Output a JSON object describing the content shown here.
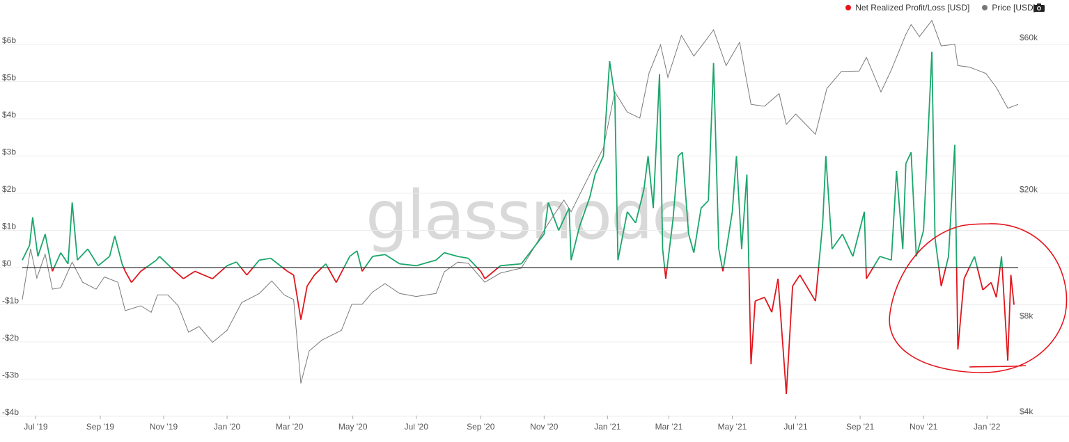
{
  "legend": {
    "series1": {
      "label": "Net Realized Profit/Loss [USD]",
      "color": "#e8141c"
    },
    "series2": {
      "label": "Price [USD]",
      "color": "#777777"
    }
  },
  "toolbar": {
    "camera_icon": "camera-icon"
  },
  "watermark": "glassnode",
  "colors": {
    "positive": "#1aa66b",
    "negative": "#e0161c",
    "price": "#7a7a7a",
    "zero_line": "#333333",
    "annotation": "#e5141c"
  },
  "chart_data": {
    "type": "line",
    "x_axis": {
      "tick_labels": [
        "Jul '19",
        "Sep '19",
        "Nov '19",
        "Jan '20",
        "Mar '20",
        "May '20",
        "Jul '20",
        "Sep '20",
        "Nov '20",
        "Jan '21",
        "Mar '21",
        "May '21",
        "Jul '21",
        "Sep '21",
        "Nov '21",
        "Jan '22"
      ],
      "range": [
        "2019-06-18",
        "2022-01-31"
      ]
    },
    "y_left": {
      "tick_labels": [
        "$6b",
        "$5b",
        "$4b",
        "$3b",
        "$2b",
        "$1b",
        "$0",
        "-$1b",
        "-$2b",
        "-$3b",
        "-$4b"
      ],
      "tick_values": [
        6,
        5,
        4,
        3,
        2,
        1,
        0,
        -1,
        -2,
        -3,
        -4
      ],
      "range": [
        -4,
        6.3
      ],
      "unit": "billion USD"
    },
    "y_right": {
      "tick_labels": [
        "$60k",
        "$20k",
        "$8k",
        "$4k"
      ],
      "tick_values": [
        60000,
        20000,
        8000,
        4000
      ],
      "scale": "log",
      "range": [
        4000,
        72000
      ]
    },
    "series": [
      {
        "name": "Net Realized Profit/Loss [USD]",
        "axis": "left",
        "points": [
          [
            "2019-06-18",
            0.2
          ],
          [
            "2019-06-25",
            0.6
          ],
          [
            "2019-06-28",
            1.35
          ],
          [
            "2019-07-03",
            0.3
          ],
          [
            "2019-07-10",
            0.9
          ],
          [
            "2019-07-17",
            -0.1
          ],
          [
            "2019-07-25",
            0.4
          ],
          [
            "2019-08-01",
            0.1
          ],
          [
            "2019-08-05",
            1.75
          ],
          [
            "2019-08-10",
            0.2
          ],
          [
            "2019-08-20",
            0.5
          ],
          [
            "2019-08-30",
            0.05
          ],
          [
            "2019-09-10",
            0.3
          ],
          [
            "2019-09-15",
            0.85
          ],
          [
            "2019-09-22",
            0.1
          ],
          [
            "2019-09-25",
            -0.1
          ],
          [
            "2019-10-01",
            -0.4
          ],
          [
            "2019-10-10",
            -0.1
          ],
          [
            "2019-10-25",
            0.2
          ],
          [
            "2019-10-28",
            0.3
          ],
          [
            "2019-11-10",
            -0.05
          ],
          [
            "2019-11-20",
            -0.3
          ],
          [
            "2019-12-01",
            -0.1
          ],
          [
            "2019-12-18",
            -0.3
          ],
          [
            "2020-01-01",
            0.05
          ],
          [
            "2020-01-10",
            0.15
          ],
          [
            "2020-01-20",
            -0.2
          ],
          [
            "2020-02-01",
            0.2
          ],
          [
            "2020-02-12",
            0.25
          ],
          [
            "2020-02-28",
            -0.1
          ],
          [
            "2020-03-05",
            -0.2
          ],
          [
            "2020-03-12",
            -1.4
          ],
          [
            "2020-03-18",
            -0.5
          ],
          [
            "2020-03-25",
            -0.2
          ],
          [
            "2020-04-05",
            0.1
          ],
          [
            "2020-04-15",
            -0.4
          ],
          [
            "2020-04-28",
            0.3
          ],
          [
            "2020-05-05",
            0.45
          ],
          [
            "2020-05-10",
            -0.1
          ],
          [
            "2020-05-20",
            0.3
          ],
          [
            "2020-06-01",
            0.35
          ],
          [
            "2020-06-15",
            0.1
          ],
          [
            "2020-07-01",
            0.05
          ],
          [
            "2020-07-20",
            0.2
          ],
          [
            "2020-07-28",
            0.4
          ],
          [
            "2020-08-10",
            0.3
          ],
          [
            "2020-08-20",
            0.25
          ],
          [
            "2020-09-01",
            -0.1
          ],
          [
            "2020-09-05",
            -0.3
          ],
          [
            "2020-09-20",
            0.05
          ],
          [
            "2020-10-10",
            0.1
          ],
          [
            "2020-10-21",
            0.5
          ],
          [
            "2020-11-01",
            0.9
          ],
          [
            "2020-11-05",
            1.75
          ],
          [
            "2020-11-15",
            1.0
          ],
          [
            "2020-11-25",
            1.6
          ],
          [
            "2020-11-27",
            0.2
          ],
          [
            "2020-12-05",
            1.1
          ],
          [
            "2020-12-15",
            1.9
          ],
          [
            "2020-12-20",
            2.5
          ],
          [
            "2020-12-28",
            3.0
          ],
          [
            "2021-01-03",
            5.55
          ],
          [
            "2021-01-08",
            4.6
          ],
          [
            "2021-01-11",
            0.2
          ],
          [
            "2021-01-20",
            1.5
          ],
          [
            "2021-01-28",
            1.2
          ],
          [
            "2021-02-05",
            2.1
          ],
          [
            "2021-02-09",
            3.0
          ],
          [
            "2021-02-14",
            1.6
          ],
          [
            "2021-02-20",
            5.2
          ],
          [
            "2021-02-23",
            0.5
          ],
          [
            "2021-02-26",
            -0.3
          ],
          [
            "2021-03-05",
            1.3
          ],
          [
            "2021-03-10",
            3.0
          ],
          [
            "2021-03-14",
            3.1
          ],
          [
            "2021-03-20",
            0.9
          ],
          [
            "2021-03-25",
            0.4
          ],
          [
            "2021-04-01",
            1.6
          ],
          [
            "2021-04-08",
            1.8
          ],
          [
            "2021-04-13",
            5.5
          ],
          [
            "2021-04-18",
            0.5
          ],
          [
            "2021-04-22",
            -0.1
          ],
          [
            "2021-05-01",
            1.5
          ],
          [
            "2021-05-05",
            3.0
          ],
          [
            "2021-05-10",
            0.5
          ],
          [
            "2021-05-15",
            2.5
          ],
          [
            "2021-05-19",
            -2.6
          ],
          [
            "2021-05-23",
            -0.9
          ],
          [
            "2021-06-01",
            -0.8
          ],
          [
            "2021-06-08",
            -1.2
          ],
          [
            "2021-06-14",
            -0.3
          ],
          [
            "2021-06-22",
            -3.4
          ],
          [
            "2021-06-28",
            -0.5
          ],
          [
            "2021-07-05",
            -0.2
          ],
          [
            "2021-07-20",
            -0.9
          ],
          [
            "2021-07-27",
            1.2
          ],
          [
            "2021-07-30",
            3.0
          ],
          [
            "2021-08-05",
            0.5
          ],
          [
            "2021-08-15",
            0.9
          ],
          [
            "2021-08-25",
            0.3
          ],
          [
            "2021-09-05",
            1.5
          ],
          [
            "2021-09-07",
            -0.3
          ],
          [
            "2021-09-20",
            0.3
          ],
          [
            "2021-10-01",
            0.2
          ],
          [
            "2021-10-06",
            2.6
          ],
          [
            "2021-10-12",
            0.5
          ],
          [
            "2021-10-15",
            2.8
          ],
          [
            "2021-10-20",
            3.1
          ],
          [
            "2021-10-25",
            0.3
          ],
          [
            "2021-11-01",
            1.0
          ],
          [
            "2021-11-09",
            5.8
          ],
          [
            "2021-11-12",
            0.8
          ],
          [
            "2021-11-18",
            -0.5
          ],
          [
            "2021-11-25",
            0.3
          ],
          [
            "2021-12-01",
            3.3
          ],
          [
            "2021-12-04",
            -2.2
          ],
          [
            "2021-12-10",
            -0.3
          ],
          [
            "2021-12-20",
            0.3
          ],
          [
            "2021-12-28",
            -0.6
          ],
          [
            "2022-01-05",
            -0.4
          ],
          [
            "2022-01-10",
            -0.8
          ],
          [
            "2022-01-15",
            0.3
          ],
          [
            "2022-01-21",
            -2.5
          ],
          [
            "2022-01-24",
            -0.2
          ],
          [
            "2022-01-27",
            -1.0
          ]
        ]
      },
      {
        "name": "Price [USD]",
        "axis": "right",
        "points": [
          [
            "2019-06-18",
            9000
          ],
          [
            "2019-06-26",
            13000
          ],
          [
            "2019-07-02",
            10500
          ],
          [
            "2019-07-10",
            12500
          ],
          [
            "2019-07-17",
            9700
          ],
          [
            "2019-07-25",
            9800
          ],
          [
            "2019-08-05",
            11800
          ],
          [
            "2019-08-15",
            10200
          ],
          [
            "2019-08-28",
            9700
          ],
          [
            "2019-09-05",
            10600
          ],
          [
            "2019-09-18",
            10200
          ],
          [
            "2019-09-25",
            8300
          ],
          [
            "2019-10-10",
            8600
          ],
          [
            "2019-10-20",
            8200
          ],
          [
            "2019-10-26",
            9300
          ],
          [
            "2019-11-05",
            9300
          ],
          [
            "2019-11-15",
            8600
          ],
          [
            "2019-11-25",
            7100
          ],
          [
            "2019-12-05",
            7400
          ],
          [
            "2019-12-18",
            6600
          ],
          [
            "2020-01-01",
            7200
          ],
          [
            "2020-01-15",
            8800
          ],
          [
            "2020-02-01",
            9400
          ],
          [
            "2020-02-13",
            10300
          ],
          [
            "2020-02-25",
            9300
          ],
          [
            "2020-03-05",
            9000
          ],
          [
            "2020-03-12",
            4900
          ],
          [
            "2020-03-20",
            6200
          ],
          [
            "2020-04-01",
            6700
          ],
          [
            "2020-04-20",
            7200
          ],
          [
            "2020-04-30",
            8700
          ],
          [
            "2020-05-10",
            8700
          ],
          [
            "2020-05-20",
            9500
          ],
          [
            "2020-06-01",
            10100
          ],
          [
            "2020-06-15",
            9400
          ],
          [
            "2020-07-01",
            9200
          ],
          [
            "2020-07-20",
            9400
          ],
          [
            "2020-07-28",
            11000
          ],
          [
            "2020-08-10",
            11800
          ],
          [
            "2020-08-20",
            11700
          ],
          [
            "2020-09-05",
            10200
          ],
          [
            "2020-09-20",
            10900
          ],
          [
            "2020-10-10",
            11300
          ],
          [
            "2020-10-21",
            12900
          ],
          [
            "2020-11-05",
            15600
          ],
          [
            "2020-11-20",
            18500
          ],
          [
            "2020-11-27",
            17000
          ],
          [
            "2020-12-05",
            19200
          ],
          [
            "2020-12-17",
            23000
          ],
          [
            "2020-12-28",
            27000
          ],
          [
            "2021-01-08",
            40500
          ],
          [
            "2021-01-20",
            35000
          ],
          [
            "2021-02-01",
            33500
          ],
          [
            "2021-02-10",
            46500
          ],
          [
            "2021-02-21",
            57000
          ],
          [
            "2021-02-28",
            45000
          ],
          [
            "2021-03-13",
            61000
          ],
          [
            "2021-03-25",
            52500
          ],
          [
            "2021-04-05",
            58500
          ],
          [
            "2021-04-13",
            63500
          ],
          [
            "2021-04-25",
            49000
          ],
          [
            "2021-05-08",
            58000
          ],
          [
            "2021-05-19",
            37000
          ],
          [
            "2021-06-01",
            36500
          ],
          [
            "2021-06-15",
            40000
          ],
          [
            "2021-06-22",
            32000
          ],
          [
            "2021-07-01",
            34500
          ],
          [
            "2021-07-20",
            29800
          ],
          [
            "2021-07-31",
            41500
          ],
          [
            "2021-08-14",
            47000
          ],
          [
            "2021-08-31",
            47100
          ],
          [
            "2021-09-07",
            52000
          ],
          [
            "2021-09-21",
            40500
          ],
          [
            "2021-10-01",
            47500
          ],
          [
            "2021-10-15",
            61500
          ],
          [
            "2021-10-20",
            66000
          ],
          [
            "2021-10-28",
            60500
          ],
          [
            "2021-11-09",
            68000
          ],
          [
            "2021-11-18",
            56500
          ],
          [
            "2021-12-01",
            57200
          ],
          [
            "2021-12-04",
            49000
          ],
          [
            "2021-12-15",
            48500
          ],
          [
            "2021-12-31",
            46300
          ],
          [
            "2022-01-10",
            41800
          ],
          [
            "2022-01-21",
            36000
          ],
          [
            "2022-01-31",
            37000
          ]
        ]
      }
    ],
    "annotation": "hand-drawn red ellipse around the Nov '21 – Jan '22 region"
  }
}
